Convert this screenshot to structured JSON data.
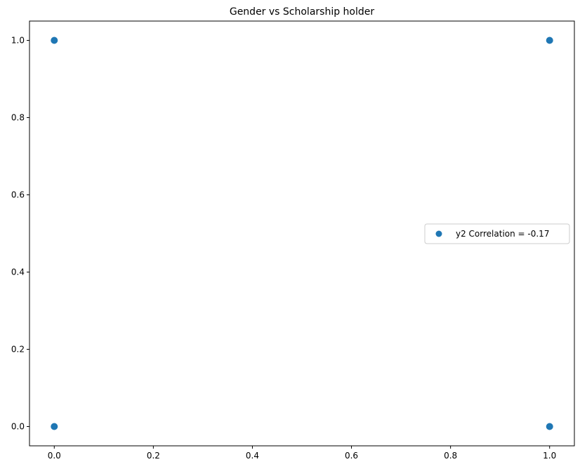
{
  "chart_data": {
    "type": "scatter",
    "title": "Gender vs Scholarship holder",
    "xlabel": "",
    "ylabel": "",
    "xlim": [
      -0.05,
      1.05
    ],
    "ylim": [
      -0.05,
      1.05
    ],
    "grid": false,
    "x_ticks": [
      0.0,
      0.2,
      0.4,
      0.6,
      0.8,
      1.0
    ],
    "x_tick_labels": [
      "0.0",
      "0.2",
      "0.4",
      "0.6",
      "0.8",
      "1.0"
    ],
    "y_ticks": [
      0.0,
      0.2,
      0.4,
      0.6,
      0.8,
      1.0
    ],
    "y_tick_labels": [
      "0.0",
      "0.2",
      "0.4",
      "0.6",
      "0.8",
      "1.0"
    ],
    "legend_position": "center-right",
    "series": [
      {
        "name": "y2 Correlation = -0.17",
        "color": "#1f77b4",
        "points": [
          {
            "x": 0,
            "y": 1
          },
          {
            "x": 0,
            "y": 0
          },
          {
            "x": 1,
            "y": 1
          },
          {
            "x": 1,
            "y": 0
          }
        ]
      }
    ]
  }
}
